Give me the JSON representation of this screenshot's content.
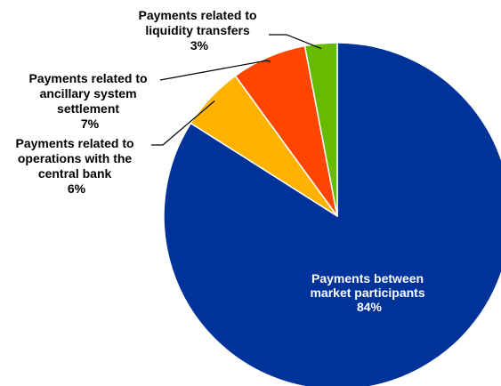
{
  "chart_data": {
    "type": "pie",
    "title": "",
    "slices": [
      {
        "name_lines": [
          "Payments between",
          "market participants"
        ],
        "value": 84,
        "value_label": "84%",
        "color": "#003399"
      },
      {
        "name_lines": [
          "Payments related to",
          "operations with the",
          "central bank"
        ],
        "value": 6,
        "value_label": "6%",
        "color": "#FFB300"
      },
      {
        "name_lines": [
          "Payments related to",
          "ancillary system",
          "settlement"
        ],
        "value": 7,
        "value_label": "7%",
        "color": "#FF4500"
      },
      {
        "name_lines": [
          "Payments related to",
          "liquidity transfers"
        ],
        "value": 3,
        "value_label": "3%",
        "color": "#66BB00"
      }
    ]
  }
}
